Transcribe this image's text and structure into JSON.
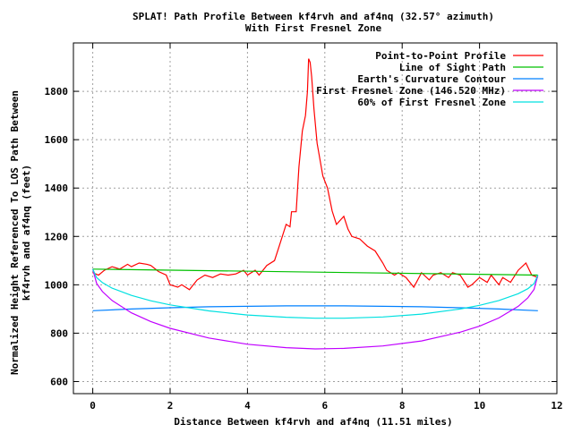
{
  "chart_data": {
    "type": "line",
    "title": "SPLAT! Path Profile Between kf4rvh and af4nq (32.57° azimuth)",
    "subtitle": "With First Fresnel Zone",
    "xlabel": "Distance Between kf4rvh and af4nq (11.51 miles)",
    "ylabel_line1": "Normalized Height Referenced To LOS Path Between",
    "ylabel_line2": "kf4rvh and af4nq (feet)",
    "xlim": [
      -0.5,
      12
    ],
    "ylim": [
      550,
      2000
    ],
    "xticks": [
      0,
      2,
      4,
      6,
      8,
      10,
      12
    ],
    "yticks": [
      600,
      800,
      1000,
      1200,
      1400,
      1600,
      1800
    ],
    "grid": true,
    "legend_position": "top-right",
    "series": [
      {
        "name": "Point-to-Point Profile",
        "color": "#ff0000",
        "x": [
          0,
          0.15,
          0.3,
          0.5,
          0.7,
          0.9,
          1.0,
          1.2,
          1.4,
          1.5,
          1.7,
          1.9,
          2.0,
          2.2,
          2.3,
          2.5,
          2.7,
          2.9,
          3.1,
          3.3,
          3.5,
          3.7,
          3.9,
          4.0,
          4.2,
          4.3,
          4.5,
          4.7,
          4.8,
          4.9,
          5.0,
          5.1,
          5.14,
          5.26,
          5.33,
          5.42,
          5.5,
          5.55,
          5.58,
          5.62,
          5.66,
          5.72,
          5.8,
          5.95,
          6.07,
          6.19,
          6.3,
          6.49,
          6.6,
          6.7,
          6.9,
          7.1,
          7.3,
          7.5,
          7.6,
          7.8,
          7.9,
          8.1,
          8.3,
          8.5,
          8.7,
          8.8,
          9.0,
          9.2,
          9.3,
          9.5,
          9.7,
          9.8,
          10.0,
          10.2,
          10.3,
          10.5,
          10.6,
          10.8,
          11.0,
          11.2,
          11.35,
          11.51
        ],
        "y": [
          1050,
          1040,
          1060,
          1075,
          1065,
          1085,
          1075,
          1090,
          1085,
          1080,
          1055,
          1040,
          1000,
          990,
          1000,
          980,
          1020,
          1040,
          1030,
          1045,
          1040,
          1045,
          1060,
          1040,
          1060,
          1040,
          1080,
          1100,
          1150,
          1200,
          1250,
          1240,
          1302,
          1302,
          1488,
          1636,
          1700,
          1800,
          1935,
          1920,
          1860,
          1726,
          1585,
          1450,
          1400,
          1305,
          1250,
          1283,
          1230,
          1200,
          1190,
          1160,
          1140,
          1090,
          1060,
          1040,
          1050,
          1030,
          990,
          1050,
          1020,
          1040,
          1050,
          1030,
          1050,
          1040,
          990,
          1000,
          1030,
          1010,
          1040,
          1000,
          1030,
          1010,
          1060,
          1090,
          1040,
          1030
        ]
      },
      {
        "name": "Line of Sight Path",
        "color": "#00c000",
        "x": [
          0,
          11.51
        ],
        "y": [
          1065,
          1040
        ]
      },
      {
        "name": "Earth's Curvature Contour",
        "color": "#0080ff",
        "x": [
          0,
          1,
          2,
          3,
          4,
          5,
          5.755,
          6.5,
          7.5,
          8.5,
          9.5,
          10.5,
          11.51
        ],
        "y": [
          893,
          900,
          905,
          909,
          911,
          913,
          913,
          913,
          911,
          909,
          905,
          900,
          893
        ]
      },
      {
        "name": "First Fresnel Zone (146.520 MHz)",
        "color": "#c000ff",
        "x": [
          0,
          0.1,
          0.25,
          0.5,
          1,
          1.5,
          2,
          3,
          4,
          5,
          5.755,
          6.5,
          7.5,
          8.5,
          9.5,
          10,
          10.5,
          11,
          11.25,
          11.41,
          11.51
        ],
        "y": [
          1065,
          1006,
          972,
          935,
          884,
          848,
          820,
          780,
          754,
          740,
          735,
          737,
          747,
          768,
          804,
          829,
          863,
          911,
          946,
          981,
          1040
        ]
      },
      {
        "name": "60% of First Fresnel Zone",
        "color": "#00e0e0",
        "x": [
          0,
          0.1,
          0.25,
          0.5,
          1,
          1.5,
          2,
          3,
          4,
          5,
          5.755,
          6.5,
          7.5,
          8.5,
          9.5,
          10,
          10.5,
          11,
          11.25,
          11.41,
          11.51
        ],
        "y": [
          1065,
          1030,
          1009,
          986,
          956,
          934,
          917,
          892,
          875,
          866,
          862,
          862,
          867,
          879,
          900,
          915,
          935,
          963,
          984,
          1005,
          1040
        ]
      }
    ]
  }
}
